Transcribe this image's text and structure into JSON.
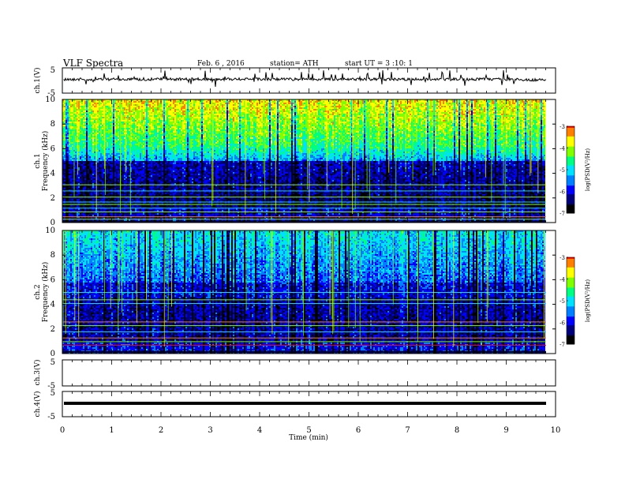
{
  "header": {
    "title": "VLF Spectra",
    "date": "Feb. 6 , 2016",
    "station": "station= ATH",
    "start": "start UT = 3 :10: 1"
  },
  "colors": {
    "colormap": [
      "#000000",
      "#00007a",
      "#0000ff",
      "#0080ff",
      "#00e0ff",
      "#00ff80",
      "#80ff00",
      "#ffff00",
      "#ff8000",
      "#ff0000",
      "#ffffff"
    ]
  },
  "chart_data": [
    {
      "type": "line",
      "panel": "ch1-waveform",
      "ylabel": "ch.1(V)",
      "ylim": [
        -5,
        5
      ],
      "yticks": [
        "5",
        "-5"
      ],
      "x": [
        0,
        9.8
      ],
      "description_values": {
        "baseline": 0,
        "spike_max": 4.5,
        "spike_min": -2.5
      }
    },
    {
      "type": "heatmap",
      "panel": "ch1-spectrogram",
      "ylabel": "ch.1 Frequency (kHz)",
      "ylim": [
        0,
        10
      ],
      "yticks": [
        "0",
        "2",
        "4",
        "6",
        "8",
        "10"
      ],
      "x_range": [
        0,
        9.8
      ],
      "colorbar": {
        "label": "log(PSD(V²/Hz)",
        "ticks": [
          "-3",
          "-4",
          "-5",
          "-6",
          "-7"
        ],
        "range": [
          -7,
          -3
        ]
      }
    },
    {
      "type": "heatmap",
      "panel": "ch2-spectrogram",
      "ylabel": "ch.2 Frequency (kHz)",
      "ylim": [
        0,
        10
      ],
      "yticks": [
        "0",
        "2",
        "4",
        "6",
        "8",
        "10"
      ],
      "x_range": [
        0,
        9.8
      ],
      "colorbar": {
        "label": "log(PSD(V²/Hz)",
        "ticks": [
          "-3",
          "-4",
          "-5",
          "-6",
          "-7"
        ],
        "range": [
          -7,
          -3
        ]
      }
    },
    {
      "type": "line",
      "panel": "ch3-waveform",
      "ylabel": "ch.3(V)",
      "ylim": [
        -5,
        5
      ],
      "yticks": [
        "5",
        "-5"
      ]
    },
    {
      "type": "line",
      "panel": "ch4-waveform",
      "ylabel": "ch.4(V)",
      "ylim": [
        -5,
        5
      ],
      "yticks": [
        "5",
        "-5"
      ],
      "x": [
        0,
        9.8
      ],
      "y": [
        0,
        0
      ]
    }
  ],
  "xaxis": {
    "label": "Time (min)",
    "ticks": [
      "0",
      "1",
      "2",
      "3",
      "4",
      "5",
      "6",
      "7",
      "8",
      "9",
      "10"
    ],
    "range": [
      0,
      10
    ]
  }
}
